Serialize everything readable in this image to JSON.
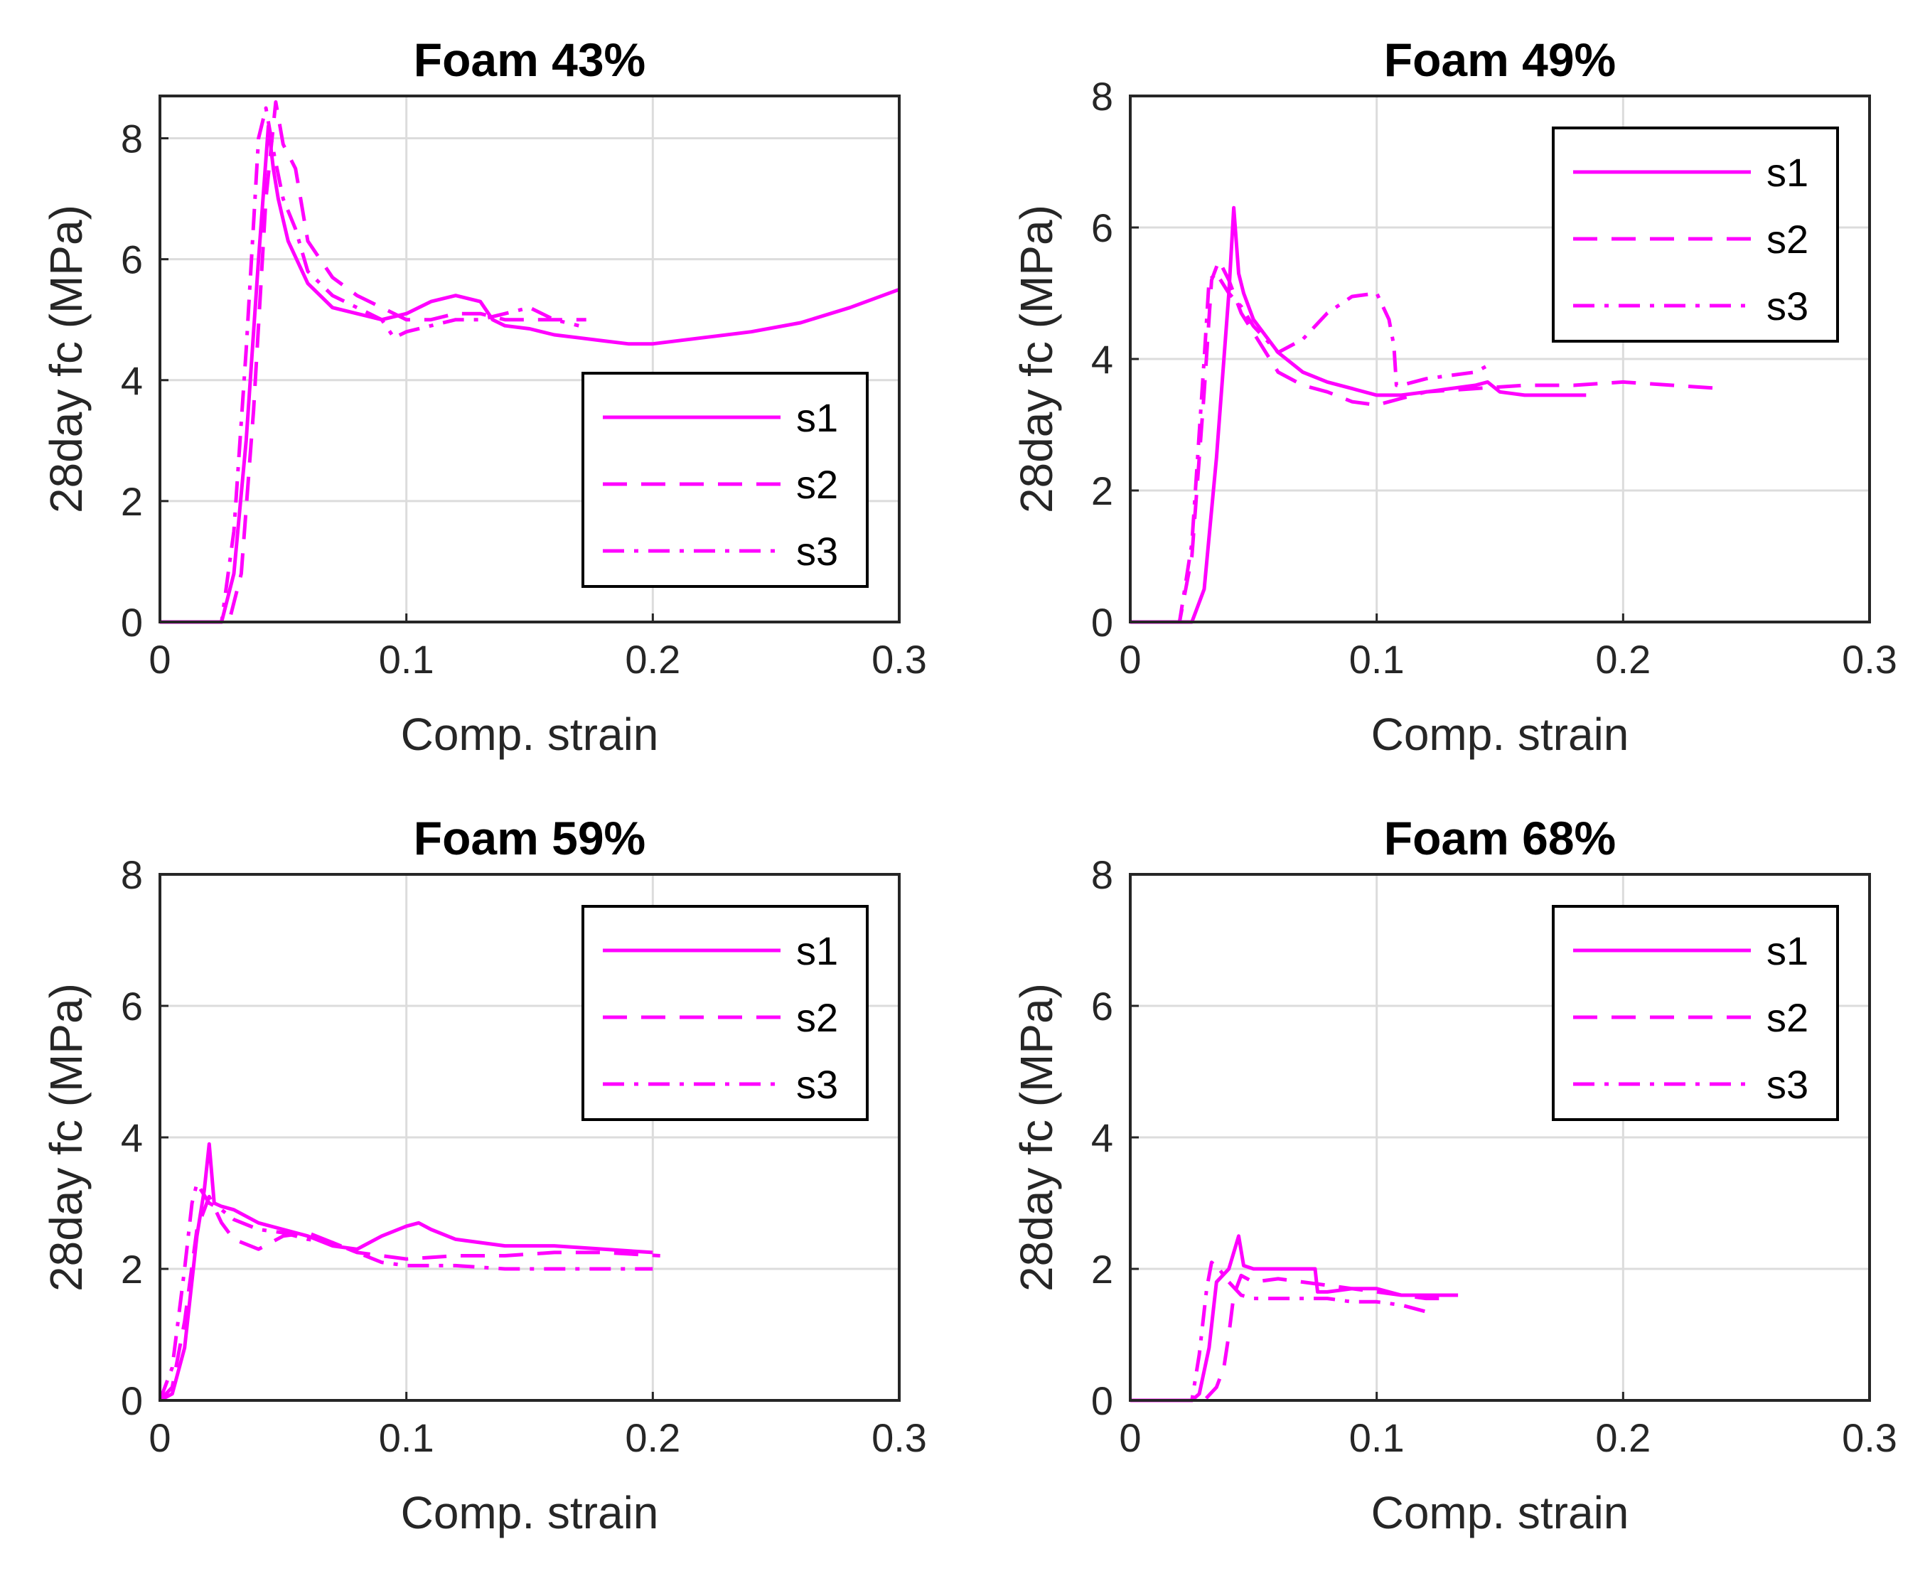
{
  "figure": {
    "line_color": "#ff00ff",
    "axis_color": "#262626",
    "grid_color": "#dcdcdc"
  },
  "chart_data": [
    {
      "type": "line",
      "title": "Foam 43%",
      "xlabel": "Comp. strain",
      "ylabel": "28day fc (MPa)",
      "xlim": [
        0,
        0.3
      ],
      "ylim": [
        0,
        8.7
      ],
      "xticks": [
        "0",
        "0.1",
        "0.2",
        "0.3"
      ],
      "yticks": [
        "0",
        "2",
        "4",
        "6",
        "8"
      ],
      "grid": true,
      "legend": {
        "placement": "lower-right",
        "entries": [
          "s1",
          "s2",
          "s3"
        ]
      },
      "series": [
        {
          "name": "s1",
          "style": "solid",
          "x": [
            0,
            0.025,
            0.03,
            0.035,
            0.04,
            0.044,
            0.046,
            0.048,
            0.052,
            0.06,
            0.07,
            0.08,
            0.09,
            0.1,
            0.11,
            0.12,
            0.13,
            0.135,
            0.14,
            0.15,
            0.16,
            0.17,
            0.18,
            0.19,
            0.2,
            0.22,
            0.24,
            0.26,
            0.28,
            0.3
          ],
          "y": [
            0,
            0,
            0.8,
            3,
            6,
            8.2,
            7.5,
            7,
            6.3,
            5.6,
            5.2,
            5.1,
            5,
            5.1,
            5.3,
            5.4,
            5.3,
            5,
            4.9,
            4.85,
            4.75,
            4.7,
            4.65,
            4.6,
            4.6,
            4.7,
            4.8,
            4.95,
            5.2,
            5.5
          ]
        },
        {
          "name": "s2",
          "style": "dashed",
          "x": [
            0,
            0.028,
            0.033,
            0.038,
            0.043,
            0.047,
            0.05,
            0.055,
            0.06,
            0.07,
            0.08,
            0.09,
            0.1,
            0.11,
            0.12,
            0.13,
            0.14,
            0.15,
            0.16,
            0.173
          ],
          "y": [
            0,
            0,
            0.8,
            3.5,
            7,
            8.6,
            7.9,
            7.5,
            6.3,
            5.7,
            5.4,
            5.2,
            5,
            5,
            5.1,
            5.1,
            5,
            5,
            5,
            5
          ]
        },
        {
          "name": "s3",
          "style": "dashdot",
          "x": [
            0,
            0.025,
            0.03,
            0.035,
            0.04,
            0.043,
            0.046,
            0.05,
            0.055,
            0.06,
            0.07,
            0.08,
            0.09,
            0.095,
            0.1,
            0.11,
            0.12,
            0.13,
            0.14,
            0.15,
            0.16,
            0.17
          ],
          "y": [
            0,
            0,
            1.5,
            4.5,
            8,
            8.5,
            7.8,
            7,
            6.5,
            5.8,
            5.4,
            5.2,
            5,
            4.7,
            4.8,
            4.9,
            5,
            5,
            5.1,
            5.2,
            5,
            4.9
          ]
        }
      ]
    },
    {
      "type": "line",
      "title": "Foam 49%",
      "xlabel": "Comp. strain",
      "ylabel": "28day fc (MPa)",
      "xlim": [
        0,
        0.3
      ],
      "ylim": [
        0,
        8
      ],
      "xticks": [
        "0",
        "0.1",
        "0.2",
        "0.3"
      ],
      "yticks": [
        "0",
        "2",
        "4",
        "6",
        "8"
      ],
      "grid": true,
      "legend": {
        "placement": "top-right",
        "entries": [
          "s1",
          "s2",
          "s3"
        ]
      },
      "series": [
        {
          "name": "s1",
          "style": "solid",
          "x": [
            0,
            0.025,
            0.03,
            0.035,
            0.04,
            0.042,
            0.044,
            0.046,
            0.05,
            0.06,
            0.07,
            0.08,
            0.09,
            0.1,
            0.11,
            0.12,
            0.13,
            0.14,
            0.145,
            0.15,
            0.16,
            0.17,
            0.18,
            0.185
          ],
          "y": [
            0,
            0,
            0.5,
            2.5,
            5,
            6.3,
            5.3,
            5,
            4.6,
            4.1,
            3.8,
            3.65,
            3.55,
            3.45,
            3.45,
            3.5,
            3.55,
            3.6,
            3.65,
            3.5,
            3.45,
            3.45,
            3.45,
            3.45
          ]
        },
        {
          "name": "s2",
          "style": "dashed",
          "x": [
            0,
            0.02,
            0.025,
            0.03,
            0.033,
            0.036,
            0.04,
            0.045,
            0.05,
            0.06,
            0.07,
            0.08,
            0.09,
            0.1,
            0.11,
            0.12,
            0.14,
            0.16,
            0.18,
            0.2,
            0.22,
            0.24
          ],
          "y": [
            0,
            0,
            1,
            3.5,
            5.2,
            5.5,
            5.2,
            4.7,
            4.4,
            3.8,
            3.6,
            3.5,
            3.35,
            3.3,
            3.4,
            3.5,
            3.55,
            3.6,
            3.6,
            3.65,
            3.6,
            3.55
          ]
        },
        {
          "name": "s3",
          "style": "dashdot",
          "x": [
            0,
            0.02,
            0.025,
            0.03,
            0.032,
            0.035,
            0.04,
            0.045,
            0.05,
            0.06,
            0.07,
            0.08,
            0.09,
            0.1,
            0.105,
            0.107,
            0.108,
            0.11,
            0.12,
            0.13,
            0.14,
            0.145
          ],
          "y": [
            0,
            0,
            1.2,
            4,
            5.2,
            5.3,
            5,
            4.8,
            4.5,
            4.1,
            4.3,
            4.7,
            4.95,
            5,
            4.6,
            4.2,
            3.6,
            3.6,
            3.7,
            3.75,
            3.8,
            3.9
          ]
        }
      ]
    },
    {
      "type": "line",
      "title": "Foam 59%",
      "xlabel": "Comp. strain",
      "ylabel": "28day fc (MPa)",
      "xlim": [
        0,
        0.3
      ],
      "ylim": [
        0,
        8
      ],
      "xticks": [
        "0",
        "0.1",
        "0.2",
        "0.3"
      ],
      "yticks": [
        "0",
        "2",
        "4",
        "6",
        "8"
      ],
      "grid": true,
      "legend": {
        "placement": "top-right",
        "entries": [
          "s1",
          "s2",
          "s3"
        ]
      },
      "series": [
        {
          "name": "s1",
          "style": "solid",
          "x": [
            0,
            0.005,
            0.01,
            0.015,
            0.018,
            0.02,
            0.022,
            0.025,
            0.03,
            0.04,
            0.05,
            0.06,
            0.07,
            0.08,
            0.09,
            0.1,
            0.105,
            0.11,
            0.12,
            0.14,
            0.16,
            0.18,
            0.2
          ],
          "y": [
            0,
            0.1,
            0.8,
            2.5,
            3.2,
            3.9,
            3,
            2.95,
            2.9,
            2.7,
            2.6,
            2.5,
            2.35,
            2.3,
            2.5,
            2.65,
            2.7,
            2.6,
            2.45,
            2.35,
            2.35,
            2.3,
            2.25
          ]
        },
        {
          "name": "s2",
          "style": "dashed",
          "x": [
            0,
            0.005,
            0.01,
            0.015,
            0.02,
            0.025,
            0.03,
            0.04,
            0.05,
            0.06,
            0.07,
            0.08,
            0.09,
            0.1,
            0.12,
            0.14,
            0.16,
            0.18,
            0.203
          ],
          "y": [
            0,
            0.2,
            1.2,
            2.6,
            3.1,
            2.7,
            2.45,
            2.3,
            2.5,
            2.55,
            2.4,
            2.25,
            2.2,
            2.15,
            2.2,
            2.2,
            2.25,
            2.25,
            2.2
          ]
        },
        {
          "name": "s3",
          "style": "dashdot",
          "x": [
            0,
            0.005,
            0.01,
            0.013,
            0.015,
            0.02,
            0.025,
            0.03,
            0.04,
            0.05,
            0.06,
            0.07,
            0.08,
            0.09,
            0.1,
            0.12,
            0.14,
            0.16,
            0.18,
            0.2
          ],
          "y": [
            0,
            0.5,
            2,
            3,
            3.3,
            3,
            2.9,
            2.75,
            2.6,
            2.55,
            2.45,
            2.4,
            2.25,
            2.1,
            2.05,
            2.05,
            2.0,
            2.0,
            2.0,
            2.0
          ]
        }
      ]
    },
    {
      "type": "line",
      "title": "Foam 68%",
      "xlabel": "Comp. strain",
      "ylabel": "28day fc (MPa)",
      "xlim": [
        0,
        0.3
      ],
      "ylim": [
        0,
        8
      ],
      "xticks": [
        "0",
        "0.1",
        "0.2",
        "0.3"
      ],
      "yticks": [
        "0",
        "2",
        "4",
        "6",
        "8"
      ],
      "grid": true,
      "legend": {
        "placement": "top-right",
        "entries": [
          "s1",
          "s2",
          "s3"
        ]
      },
      "series": [
        {
          "name": "s1",
          "style": "solid",
          "x": [
            0,
            0.025,
            0.028,
            0.032,
            0.035,
            0.04,
            0.044,
            0.046,
            0.05,
            0.06,
            0.07,
            0.075,
            0.076,
            0.08,
            0.09,
            0.1,
            0.11,
            0.12,
            0.13,
            0.133
          ],
          "y": [
            0,
            0,
            0.1,
            0.8,
            1.8,
            2,
            2.5,
            2.05,
            2,
            2,
            2,
            2,
            1.65,
            1.65,
            1.7,
            1.7,
            1.6,
            1.6,
            1.6,
            1.6
          ]
        },
        {
          "name": "s2",
          "style": "dashed",
          "x": [
            0,
            0.03,
            0.035,
            0.038,
            0.04,
            0.042,
            0.045,
            0.05,
            0.06,
            0.07,
            0.08,
            0.09,
            0.1,
            0.11,
            0.12,
            0.13
          ],
          "y": [
            0,
            0,
            0.2,
            0.5,
            1,
            1.6,
            1.9,
            1.8,
            1.85,
            1.8,
            1.75,
            1.7,
            1.65,
            1.6,
            1.55,
            1.55
          ]
        },
        {
          "name": "s3",
          "style": "dashdot",
          "x": [
            0,
            0.025,
            0.028,
            0.031,
            0.033,
            0.036,
            0.04,
            0.045,
            0.05,
            0.06,
            0.07,
            0.08,
            0.09,
            0.1,
            0.11,
            0.12
          ],
          "y": [
            0,
            0,
            0.7,
            1.7,
            2.1,
            2,
            1.8,
            1.6,
            1.55,
            1.55,
            1.55,
            1.55,
            1.5,
            1.5,
            1.45,
            1.35
          ]
        }
      ]
    }
  ]
}
